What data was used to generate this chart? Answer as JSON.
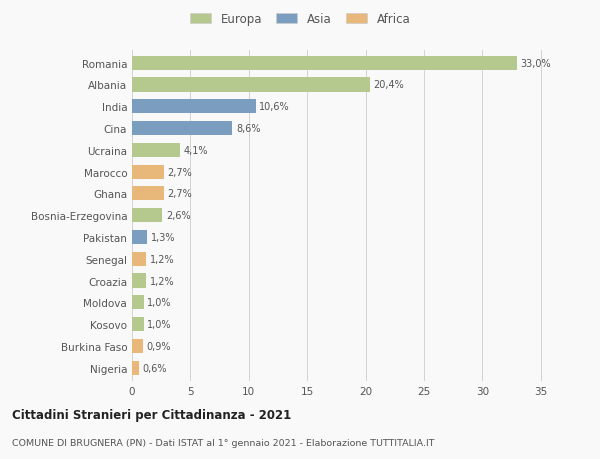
{
  "countries": [
    "Romania",
    "Albania",
    "India",
    "Cina",
    "Ucraina",
    "Marocco",
    "Ghana",
    "Bosnia-Erzegovina",
    "Pakistan",
    "Senegal",
    "Croazia",
    "Moldova",
    "Kosovo",
    "Burkina Faso",
    "Nigeria"
  ],
  "values": [
    33.0,
    20.4,
    10.6,
    8.6,
    4.1,
    2.7,
    2.7,
    2.6,
    1.3,
    1.2,
    1.2,
    1.0,
    1.0,
    0.9,
    0.6
  ],
  "labels": [
    "33,0%",
    "20,4%",
    "10,6%",
    "8,6%",
    "4,1%",
    "2,7%",
    "2,7%",
    "2,6%",
    "1,3%",
    "1,2%",
    "1,2%",
    "1,0%",
    "1,0%",
    "0,9%",
    "0,6%"
  ],
  "continents": [
    "Europa",
    "Europa",
    "Asia",
    "Asia",
    "Europa",
    "Africa",
    "Africa",
    "Europa",
    "Asia",
    "Africa",
    "Europa",
    "Europa",
    "Europa",
    "Africa",
    "Africa"
  ],
  "colors": {
    "Europa": "#b5c98e",
    "Asia": "#7b9dc0",
    "Africa": "#e8b87a"
  },
  "legend_labels": [
    "Europa",
    "Asia",
    "Africa"
  ],
  "legend_colors": [
    "#b5c98e",
    "#7b9dc0",
    "#e8b87a"
  ],
  "title": "Cittadini Stranieri per Cittadinanza - 2021",
  "subtitle": "COMUNE DI BRUGNERA (PN) - Dati ISTAT al 1° gennaio 2021 - Elaborazione TUTTITALIA.IT",
  "xlim": [
    0,
    37
  ],
  "xticks": [
    0,
    5,
    10,
    15,
    20,
    25,
    30,
    35
  ],
  "background_color": "#f9f9f9",
  "bar_height": 0.65
}
